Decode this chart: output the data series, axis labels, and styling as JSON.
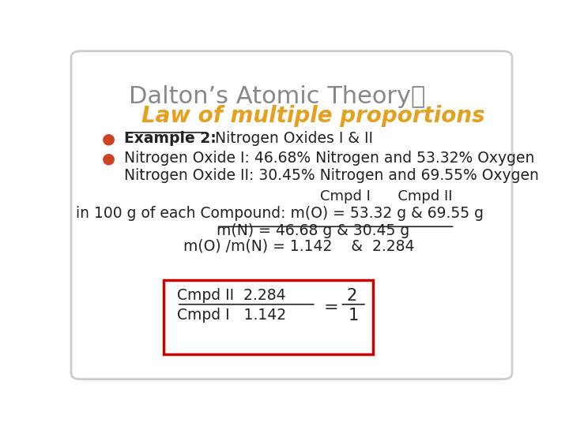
{
  "bg_color": "#ffffff",
  "border_color": "#cccccc",
  "title_line1": "Dalton’s Atomic Theory：",
  "title_line2": "Law of multiple proportions",
  "title_color": "#888888",
  "subtitle_color": "#e6a020",
  "bullet_color": "#cc4422",
  "bullet1_bold": "Example 2:",
  "bullet1_rest": "  Nitrogen Oxides I & II",
  "bullet2_line1": "Nitrogen Oxide I: 46.68% Nitrogen and 53.32% Oxygen",
  "bullet2_line2": "Nitrogen Oxide II: 30.45% Nitrogen and 69.55% Oxygen",
  "cmpd_header": "Cmpd I      Cmpd II",
  "row1_left": "in 100 g of each Compound: m(O) = 53.32 g & 69.55 g",
  "row2": "m(N) = 46.68 g & 30.45 g",
  "row3": "m(O) /m(N) = 1.142    &  2.284",
  "box_top_num": "Cmpd II  2.284",
  "box_bottom_den": "Cmpd I   1.142",
  "box_equals": "=",
  "box_frac_num": "2",
  "box_frac_den": "1",
  "box_border_color": "#cc0000",
  "text_color": "#222222"
}
